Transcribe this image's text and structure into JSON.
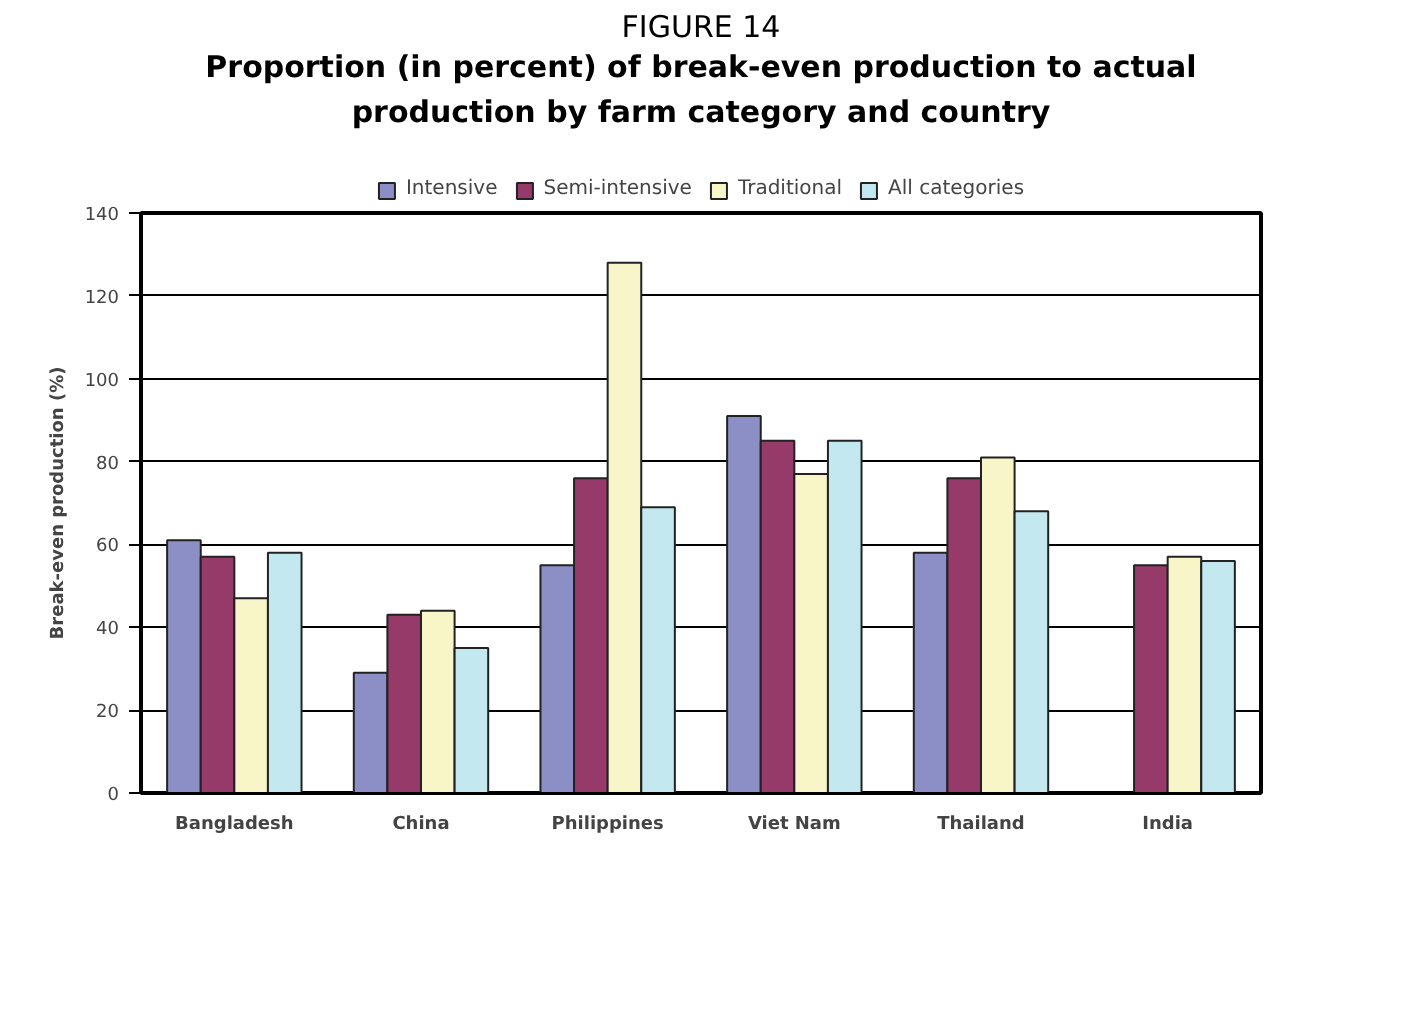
{
  "chart_data": {
    "type": "bar",
    "title": "FIGURE 14",
    "subtitle": "Proportion (in percent) of break-even production to actual production by farm category and country",
    "ylabel": "Break-even production (%)",
    "categories": [
      "Bangladesh",
      "China",
      "Philippines",
      "Viet Nam",
      "Thailand",
      "India"
    ],
    "series": [
      {
        "name": "Intensive",
        "color": "#8b8fc6",
        "values": [
          61,
          29,
          55,
          91,
          58,
          null
        ]
      },
      {
        "name": "Semi-intensive",
        "color": "#963a6a",
        "values": [
          57,
          43,
          76,
          85,
          76,
          55
        ]
      },
      {
        "name": "Traditional",
        "color": "#f8f6c8",
        "values": [
          47,
          44,
          128,
          77,
          81,
          57
        ]
      },
      {
        "name": "All categories",
        "color": "#c4e8ef",
        "values": [
          58,
          35,
          69,
          85,
          68,
          56
        ]
      }
    ],
    "ylim": [
      0,
      140
    ],
    "yticks": [
      0,
      20,
      40,
      60,
      80,
      100,
      120,
      140
    ],
    "grid": "y",
    "legend": "top"
  }
}
